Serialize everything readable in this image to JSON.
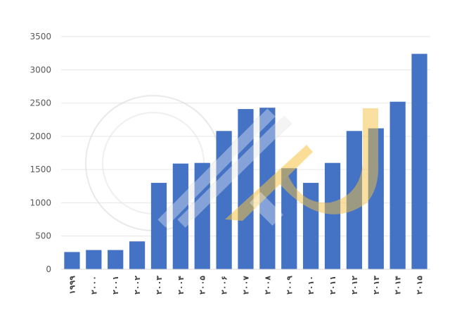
{
  "chart_data": {
    "type": "bar",
    "categories": [
      "۱۹۹۹",
      "۲۰۰۰",
      "۲۰۰۱",
      "۲۰۰۲",
      "۲۰۰۳",
      "۲۰۰۴",
      "۲۰۰۵",
      "۲۰۰۶",
      "۲۰۰۷",
      "۲۰۰۸",
      "۲۰۰۹",
      "۲۰۱۰",
      "۲۰۱۱",
      "۲۰۱۲",
      "۲۰۱۳",
      "۲۰۱۴",
      "۲۰۱۵"
    ],
    "values": [
      260,
      290,
      290,
      420,
      1300,
      1590,
      1600,
      2080,
      2410,
      2430,
      1520,
      1300,
      1600,
      2080,
      2120,
      2520,
      3240
    ],
    "ylim": [
      0,
      3500
    ],
    "yticks": [
      0,
      500,
      1000,
      1500,
      2000,
      2500,
      3000,
      3500
    ],
    "title": "",
    "xlabel": "",
    "ylabel": "",
    "grid": true,
    "legend": "none",
    "bar_color": "#4472c4"
  }
}
